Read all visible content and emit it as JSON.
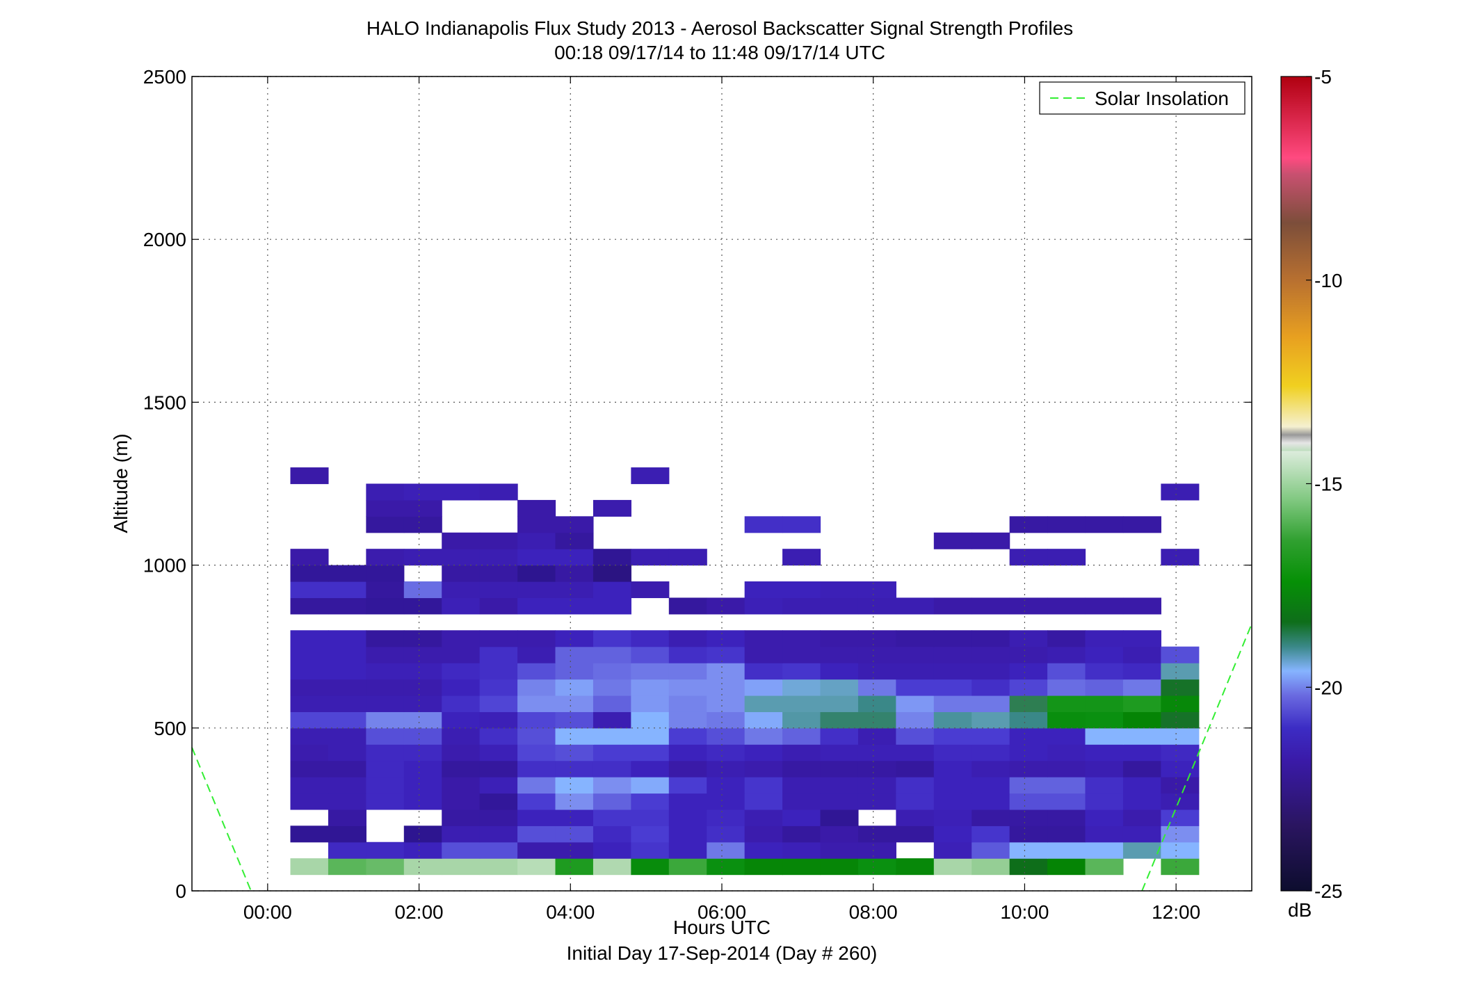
{
  "chart_data": {
    "type": "heatmap",
    "title": "HALO Indianapolis Flux Study 2013 - Aerosol Backscatter Signal Strength Profiles",
    "subtitle": "00:18 09/17/14 to 11:48 09/17/14  UTC",
    "xlabel": "Hours UTC",
    "xlabel2": "Initial Day 17-Sep-2014 (Day # 260)",
    "ylabel": "Altitude (m)",
    "xlim": [
      -1,
      13
    ],
    "ylim": [
      0,
      2500
    ],
    "x_ticks": [
      0,
      2,
      4,
      6,
      8,
      10,
      12
    ],
    "x_tick_labels": [
      "00:00",
      "02:00",
      "04:00",
      "06:00",
      "08:00",
      "10:00",
      "12:00"
    ],
    "y_ticks": [
      0,
      500,
      1000,
      1500,
      2000,
      2500
    ],
    "y_tick_labels": [
      "0",
      "500",
      "1000",
      "1500",
      "2000",
      "2500"
    ],
    "grid": true,
    "legend": {
      "position": "top-right",
      "entries": [
        {
          "label": "Solar Insolation",
          "style": "dashed",
          "color": "#33ee33"
        }
      ]
    },
    "colorbar": {
      "label": "dB",
      "range": [
        -25,
        -5
      ],
      "ticks": [
        -25,
        -20,
        -15,
        -10,
        -5
      ],
      "tick_labels": [
        "-25",
        "-20",
        "-15",
        "-10",
        "-5"
      ]
    },
    "time_start_hours": 0.3,
    "time_step_hours": 0.5,
    "altitude_start_m": 50,
    "altitude_step_m": 50,
    "value_rows": [
      [
        "-15.8",
        "-17.0",
        "-16.8",
        "-15.8",
        "-15.8",
        "-15.8",
        "-15.6",
        "-18.0",
        "-15.7",
        "-18.6",
        "-17.5",
        "-18.4",
        "-18.9",
        "-18.9",
        "-18.9",
        "-18.4",
        "-18.8",
        "-15.8",
        "-16.1",
        "-19.4",
        "-19.0",
        "-17.0",
        "",
        "-17.5"
      ],
      [
        "",
        "-22.5",
        "-22.5",
        "-22.6",
        "-22.0",
        "-22.0",
        "-22.9",
        "-22.9",
        "-22.6",
        "-22.3",
        "-22.6",
        "-21.6",
        "-22.6",
        "-22.7",
        "-22.9",
        "-22.9",
        "",
        "-22.7",
        "-21.9",
        "-21.0",
        "-21.0",
        "-21.0",
        "-20.6",
        "-21.0"
      ],
      [
        "-23.4",
        "-23.4",
        "",
        "-23.5",
        "-22.8",
        "-22.8",
        "-22.0",
        "-22.0",
        "-22.5",
        "-22.2",
        "-22.6",
        "-22.4",
        "-22.9",
        "-23.2",
        "-23.0",
        "-23.2",
        "-23.2",
        "-22.6",
        "-22.3",
        "-23.2",
        "-23.2",
        "-22.7",
        "-22.7",
        "-21.4"
      ],
      [
        "",
        "-23.1",
        "",
        "",
        "-23.1",
        "-23.1",
        "-22.6",
        "-22.6",
        "-22.3",
        "-22.3",
        "-22.6",
        "-22.5",
        "-22.8",
        "-22.6",
        "-23.4",
        "",
        "-22.8",
        "-22.7",
        "-23.1",
        "-23.1",
        "-23.1",
        "-22.6",
        "-22.9",
        "-22.2"
      ],
      [
        "-22.8",
        "-22.8",
        "-22.5",
        "-22.6",
        "-23.0",
        "-23.3",
        "-22.2",
        "-21.4",
        "-21.8",
        "-22.2",
        "-22.6",
        "-22.6",
        "-22.3",
        "-22.8",
        "-22.8",
        "-22.8",
        "-22.4",
        "-22.6",
        "-22.6",
        "-22.0",
        "-22.0",
        "-22.4",
        "-22.6",
        "-22.8"
      ],
      [
        "-22.8",
        "-22.8",
        "-22.5",
        "-22.6",
        "-23.0",
        "-22.7",
        "-21.6",
        "-21.0",
        "-21.4",
        "-21.1",
        "-22.2",
        "-22.6",
        "-22.3",
        "-22.8",
        "-22.8",
        "-22.8",
        "-22.4",
        "-22.6",
        "-22.6",
        "-21.8",
        "-21.8",
        "-22.4",
        "-22.6",
        "-23.0"
      ],
      [
        "-23.1",
        "-23.1",
        "-22.5",
        "-22.6",
        "-23.2",
        "-23.2",
        "-22.4",
        "-22.4",
        "-22.4",
        "-22.6",
        "-23.0",
        "-22.8",
        "-22.9",
        "-23.1",
        "-23.1",
        "-23.1",
        "-23.2",
        "-22.6",
        "-22.8",
        "-22.9",
        "-22.9",
        "-22.8",
        "-23.2",
        "-22.6"
      ],
      [
        "-22.9",
        "-22.8",
        "-22.5",
        "-22.5",
        "-22.9",
        "-22.7",
        "-22.1",
        "-22.0",
        "-22.2",
        "-22.2",
        "-22.6",
        "-22.5",
        "-22.6",
        "-22.8",
        "-22.7",
        "-22.7",
        "-22.7",
        "-22.5",
        "-22.5",
        "-22.6",
        "-22.7",
        "-22.6",
        "-22.6",
        "-22.5"
      ],
      [
        "-22.8",
        "-22.8",
        "-22.0",
        "-22.0",
        "-22.8",
        "-22.4",
        "-22.0",
        "-21.0",
        "-21.0",
        "-21.0",
        "-22.2",
        "-22.0",
        "-21.6",
        "-21.8",
        "-22.4",
        "-22.8",
        "-22.0",
        "-22.2",
        "-22.2",
        "-22.6",
        "-22.6",
        "-21.0",
        "-21.0",
        "-21.0"
      ],
      [
        "-22.1",
        "-22.1",
        "-21.5",
        "-21.5",
        "-22.6",
        "-22.7",
        "-22.1",
        "-22.0",
        "-22.8",
        "-21.0",
        "-21.5",
        "-21.6",
        "-21.1",
        "-20.5",
        "-20.0",
        "-20.0",
        "-21.5",
        "-20.4",
        "-20.6",
        "-20.2",
        "-18.5",
        "-18.4",
        "-19.0",
        "-19.5"
      ],
      [
        "-22.8",
        "-22.8",
        "-22.8",
        "-22.8",
        "-22.4",
        "-22.1",
        "-21.4",
        "-21.4",
        "-21.8",
        "-21.3",
        "-21.5",
        "-21.4",
        "-20.6",
        "-20.6",
        "-20.6",
        "-20.2",
        "-21.3",
        "-21.6",
        "-21.6",
        "-19.8",
        "-18.2",
        "-18.2",
        "-18.0",
        "-18.8"
      ],
      [
        "-22.9",
        "-22.9",
        "-22.9",
        "-22.9",
        "-22.6",
        "-22.3",
        "-21.5",
        "-21.2",
        "-21.6",
        "-21.3",
        "-21.4",
        "-21.4",
        "-21.2",
        "-20.8",
        "-20.7",
        "-21.6",
        "-22.2",
        "-22.2",
        "-22.4",
        "-22.1",
        "-21.7",
        "-21.8",
        "-21.6",
        "-19.5"
      ],
      [
        "-22.6",
        "-22.6",
        "-22.7",
        "-22.7",
        "-22.5",
        "-22.4",
        "-22.0",
        "-21.8",
        "-21.7",
        "-21.6",
        "-21.6",
        "-21.4",
        "-22.4",
        "-22.3",
        "-22.6",
        "-22.8",
        "-22.8",
        "-22.8",
        "-22.8",
        "-22.6",
        "-22.0",
        "-22.4",
        "-22.5",
        "-20.6"
      ],
      [
        "-22.6",
        "-22.6",
        "-22.9",
        "-22.9",
        "-22.9",
        "-22.4",
        "-22.8",
        "-21.8",
        "-21.8",
        "-22.0",
        "-22.4",
        "-22.3",
        "-22.9",
        "-22.9",
        "-22.9",
        "-22.9",
        "-22.9",
        "-22.9",
        "-22.9",
        "-22.9",
        "-22.8",
        "-22.6",
        "-22.8",
        "-22.0"
      ],
      [
        "-22.6",
        "-22.6",
        "-23.2",
        "-23.2",
        "-22.9",
        "-22.9",
        "-22.9",
        "-22.6",
        "-22.3",
        "-22.5",
        "-22.8",
        "-22.6",
        "-22.9",
        "-22.9",
        "-23.0",
        "-23.0",
        "-23.1",
        "-23.1",
        "-23.1",
        "-22.8",
        "-23.1",
        "-22.7",
        "-22.7",
        ""
      ],
      [
        "",
        "",
        "",
        "",
        "",
        "",
        "",
        "",
        "",
        "",
        "",
        "",
        "",
        "",
        "",
        "",
        "",
        "",
        "",
        "",
        "",
        "",
        "",
        ""
      ],
      [
        "-23.2",
        "-23.2",
        "-23.3",
        "-23.3",
        "-22.7",
        "-23.0",
        "-22.6",
        "-22.6",
        "-22.6",
        "",
        "-23.2",
        "-23.0",
        "-22.7",
        "-22.8",
        "-22.8",
        "-22.8",
        "-22.8",
        "-23.0",
        "-23.0",
        "-23.0",
        "-23.0",
        "-23.0",
        "-23.0",
        ""
      ],
      [
        "-22.4",
        "-22.4",
        "-23.2",
        "-21.7",
        "-22.8",
        "-22.8",
        "-22.8",
        "-22.8",
        "-22.6",
        "-22.9",
        "",
        "",
        "-22.6",
        "-22.6",
        "-22.7",
        "-22.7",
        "",
        "",
        "",
        "",
        "",
        "",
        "",
        ""
      ],
      [
        "-23.3",
        "-23.3",
        "-23.3",
        "",
        "-23.1",
        "-23.1",
        "-23.5",
        "-23.1",
        "-23.6",
        "",
        "",
        "",
        "",
        "",
        "",
        "",
        "",
        "",
        "",
        "",
        "",
        "",
        "",
        ""
      ],
      [
        "-23.0",
        "",
        "-22.9",
        "-22.8",
        "-22.8",
        "-22.8",
        "-22.6",
        "-22.6",
        "-23.4",
        "-22.8",
        "-22.8",
        "",
        "",
        "-22.8",
        "",
        "",
        "",
        "",
        "",
        "-22.8",
        "-22.8",
        "",
        "",
        "-22.8"
      ],
      [
        "",
        "",
        "",
        "",
        "-23.0",
        "-23.0",
        "-22.8",
        "-23.2",
        "",
        "",
        "",
        "",
        "",
        "",
        "",
        "",
        "",
        "-23.0",
        "-23.0",
        "",
        "",
        "",
        "",
        ""
      ],
      [
        "",
        "",
        "-23.2",
        "-23.2",
        "",
        "",
        "-23.0",
        "-23.0",
        "",
        "",
        "",
        "",
        "-22.4",
        "-22.4",
        "",
        "",
        "",
        "",
        "",
        "-23.1",
        "-23.1",
        "-23.1",
        "-23.1",
        ""
      ],
      [
        "",
        "",
        "-23.0",
        "-23.0",
        "",
        "",
        "-23.0",
        "",
        "-22.9",
        "",
        "",
        "",
        "",
        "",
        "",
        "",
        "",
        "",
        "",
        "",
        "",
        "",
        "",
        ""
      ],
      [
        "",
        "",
        "-22.8",
        "-22.7",
        "-22.7",
        "-22.8",
        "",
        "",
        "",
        "",
        "",
        "",
        "",
        "",
        "",
        "",
        "",
        "",
        "",
        "",
        "",
        "",
        "",
        "-22.8"
      ],
      [
        "-23.0",
        "",
        "",
        "",
        "",
        "",
        "",
        "",
        "",
        "-22.8",
        "",
        "",
        "",
        "",
        "",
        "",
        "",
        "",
        "",
        "",
        "",
        "",
        "",
        ""
      ]
    ],
    "solar_insolation_lines": [
      {
        "x": [
          -1.0,
          -0.22
        ],
        "y": [
          440,
          0
        ]
      },
      {
        "x": [
          11.55,
          13.0
        ],
        "y": [
          0,
          820
        ]
      }
    ]
  }
}
